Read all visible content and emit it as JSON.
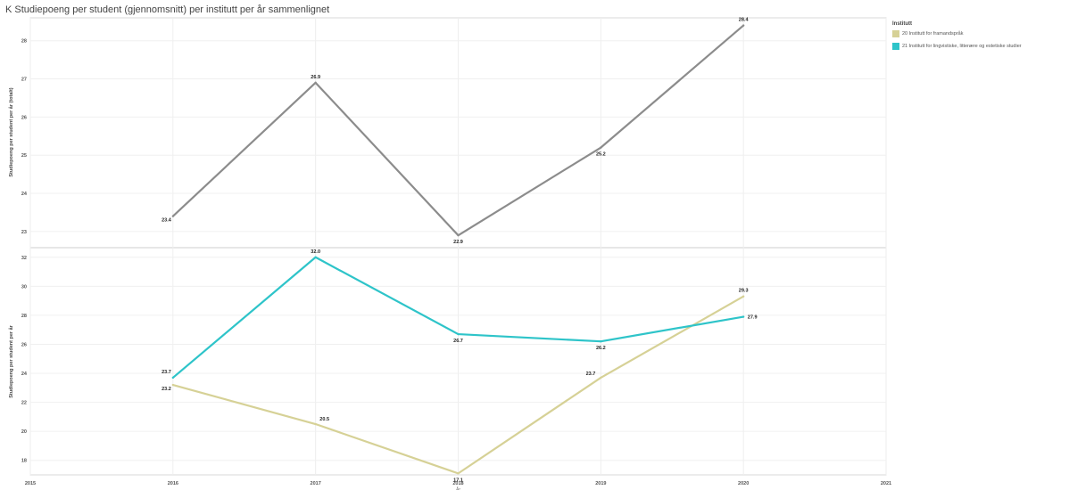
{
  "title": "K Studiepoeng per student (gjennomsnitt) per institutt per år sammenlignet",
  "legend": {
    "title": "Institutt",
    "items": [
      {
        "label": "20 Institutt for framandspråk",
        "color": "#d6d196"
      },
      {
        "label": "21 Institutt for lingvistiske, litterære og estetiske studier",
        "color": "#2ec4c9"
      }
    ]
  },
  "chart_data": [
    {
      "type": "line",
      "ylabel": "Studiepoeng per student per år (totalt)",
      "ylim": [
        22.6,
        28.6
      ],
      "yticks": [
        23,
        24,
        25,
        26,
        27,
        28
      ],
      "x": [
        2016,
        2017,
        2018,
        2019,
        2020
      ],
      "series": [
        {
          "color": "#8c8c8c",
          "values": [
            23.4,
            26.9,
            22.9,
            25.2,
            28.4
          ],
          "labels": [
            "23.4",
            "26.9",
            "22.9",
            "25.2",
            "28.4"
          ]
        }
      ]
    },
    {
      "type": "line",
      "ylabel": "Studiepoeng per student per år",
      "ylim": [
        17.0,
        32.6
      ],
      "yticks": [
        18,
        20,
        22,
        24,
        26,
        28,
        30,
        32
      ],
      "x": [
        2016,
        2017,
        2018,
        2019,
        2020
      ],
      "series": [
        {
          "name": "20 Institutt for framandspråk",
          "color": "#d6d196",
          "values": [
            23.2,
            20.5,
            17.1,
            23.7,
            29.3
          ],
          "labels": [
            "23.2",
            "20.5",
            "17.1",
            "23.7",
            "29.3"
          ]
        },
        {
          "name": "21 Institutt for lingvistiske, litterære og estetiske studier",
          "color": "#2ec4c9",
          "values": [
            23.7,
            32.0,
            26.7,
            26.2,
            27.9
          ],
          "labels": [
            "23.7",
            "32.0",
            "26.7",
            "26.2",
            "27.9"
          ]
        }
      ]
    }
  ],
  "xaxis": {
    "ticks": [
      2015,
      2016,
      2017,
      2018,
      2019,
      2020,
      2021
    ],
    "xlim": [
      2015,
      2021
    ],
    "label": "År"
  }
}
